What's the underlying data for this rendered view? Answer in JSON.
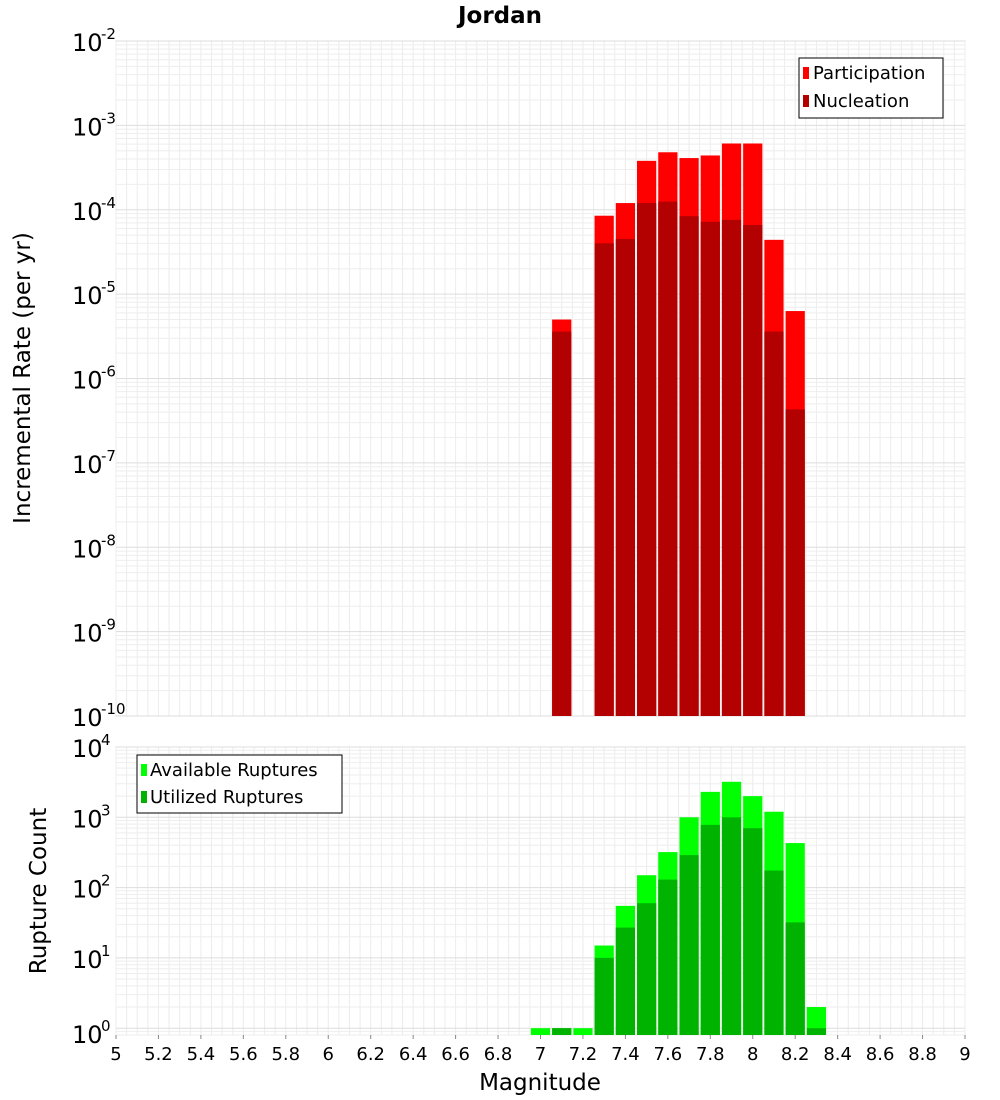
{
  "chart_data": [
    {
      "type": "bar",
      "title": "Jordan",
      "xlabel": "",
      "ylabel": "Incremental Rate (per yr)",
      "yscale": "log",
      "ylim": [
        1e-10,
        0.01
      ],
      "xlim": [
        5,
        9
      ],
      "bin_width": 0.1,
      "legend_position": "top-right",
      "series": [
        {
          "name": "Participation",
          "color": "#ff0000",
          "x": [
            7.1,
            7.3,
            7.4,
            7.5,
            7.6,
            7.7,
            7.8,
            7.9,
            8.0,
            8.1,
            8.2
          ],
          "values": [
            5e-06,
            8.5e-05,
            0.00012,
            0.00038,
            0.00048,
            0.00041,
            0.00044,
            0.00061,
            0.00061,
            4.4e-05,
            6.3e-06
          ]
        },
        {
          "name": "Nucleation",
          "color": "#b30000",
          "x": [
            7.1,
            7.3,
            7.4,
            7.5,
            7.6,
            7.7,
            7.8,
            7.9,
            8.0,
            8.1,
            8.2
          ],
          "values": [
            3.6e-06,
            4e-05,
            4.5e-05,
            0.00012,
            0.000125,
            8.4e-05,
            7.2e-05,
            7.6e-05,
            6.6e-05,
            3.6e-06,
            4.3e-07
          ]
        }
      ],
      "y_tick_labels": [
        {
          "base": "10",
          "exp": "-2"
        },
        {
          "base": "10",
          "exp": "-3"
        },
        {
          "base": "10",
          "exp": "-4"
        },
        {
          "base": "10",
          "exp": "-5"
        },
        {
          "base": "10",
          "exp": "-6"
        },
        {
          "base": "10",
          "exp": "-7"
        },
        {
          "base": "10",
          "exp": "-8"
        },
        {
          "base": "10",
          "exp": "-9"
        },
        {
          "base": "10",
          "exp": "-10"
        }
      ]
    },
    {
      "type": "bar",
      "title": "",
      "xlabel": "Magnitude",
      "ylabel": "Rupture Count",
      "yscale": "log",
      "ylim": [
        0.8,
        10000
      ],
      "xlim": [
        5,
        9
      ],
      "bin_width": 0.1,
      "legend_position": "top-left",
      "series": [
        {
          "name": "Available Ruptures",
          "color": "#00ff00",
          "x": [
            7.0,
            7.1,
            7.2,
            7.3,
            7.4,
            7.5,
            7.6,
            7.7,
            7.8,
            7.9,
            8.0,
            8.1,
            8.2,
            8.3
          ],
          "values": [
            1,
            1,
            1,
            15,
            55,
            150,
            320,
            1000,
            2300,
            3200,
            2000,
            1200,
            430,
            2
          ]
        },
        {
          "name": "Utilized Ruptures",
          "color": "#00b300",
          "x": [
            7.1,
            7.3,
            7.4,
            7.5,
            7.6,
            7.7,
            7.8,
            7.9,
            8.0,
            8.1,
            8.2,
            8.3
          ],
          "values": [
            1,
            10,
            27,
            60,
            130,
            290,
            780,
            1000,
            700,
            175,
            32,
            1
          ]
        }
      ],
      "y_tick_labels": [
        {
          "base": "10",
          "exp": "4"
        },
        {
          "base": "10",
          "exp": "3"
        },
        {
          "base": "10",
          "exp": "2"
        },
        {
          "base": "10",
          "exp": "1"
        },
        {
          "base": "10",
          "exp": "0"
        }
      ],
      "x_tick_labels": [
        "5",
        "5.2",
        "5.4",
        "5.6",
        "5.8",
        "6",
        "6.2",
        "6.4",
        "6.6",
        "6.8",
        "7",
        "7.2",
        "7.4",
        "7.6",
        "7.8",
        "8",
        "8.2",
        "8.4",
        "8.6",
        "8.8",
        "9"
      ]
    }
  ]
}
